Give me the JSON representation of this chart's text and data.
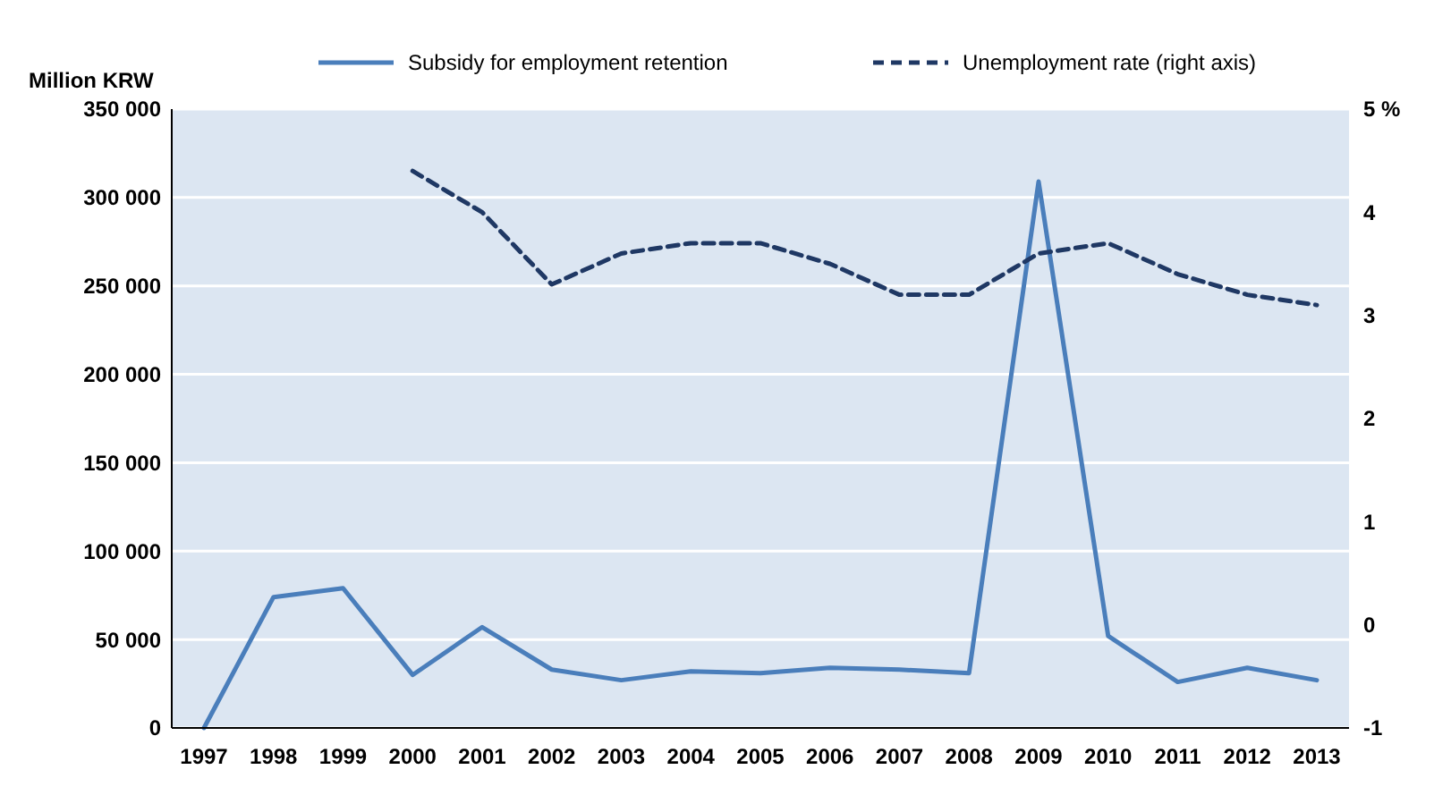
{
  "chart_data": {
    "type": "line",
    "ylabel": "Million KRW",
    "categories": [
      "1997",
      "1998",
      "1999",
      "2000",
      "2001",
      "2002",
      "2003",
      "2004",
      "2005",
      "2006",
      "2007",
      "2008",
      "2009",
      "2010",
      "2011",
      "2012",
      "2013"
    ],
    "series": [
      {
        "name": "Subsidy for employment retention",
        "color": "#4a7ebb",
        "line_style": "solid",
        "values": [
          0,
          74000,
          79000,
          30000,
          57000,
          33000,
          27000,
          32000,
          31000,
          34000,
          33000,
          31000,
          309000,
          52000,
          26000,
          34000,
          27000
        ]
      },
      {
        "name": "Unemployment rate (right axis)",
        "color": "#1f3864",
        "line_style": "dashed",
        "axis": "y2",
        "values": [
          null,
          null,
          null,
          4.4,
          4.0,
          3.3,
          3.6,
          3.7,
          3.7,
          3.5,
          3.2,
          3.2,
          3.6,
          3.7,
          3.4,
          3.2,
          3.1
        ]
      }
    ],
    "ylim": [
      0,
      350000
    ],
    "yticks": [
      0,
      {
        "value": 50000,
        "label": "50 000"
      },
      {
        "value": 100000,
        "label": "100 000"
      },
      {
        "value": 150000,
        "label": "150 000"
      },
      {
        "value": 200000,
        "label": "200 000"
      },
      {
        "value": 250000,
        "label": "250 000"
      },
      {
        "value": 300000,
        "label": "300 000"
      },
      {
        "value": 350000,
        "label": "350 000"
      }
    ],
    "y2lim": [
      -1,
      5
    ],
    "y2ticks": [
      -1,
      0,
      1,
      2,
      3,
      4,
      {
        "value": 5,
        "label": "5 %"
      }
    ],
    "grid": "y",
    "legend": "top",
    "marker": "none"
  }
}
